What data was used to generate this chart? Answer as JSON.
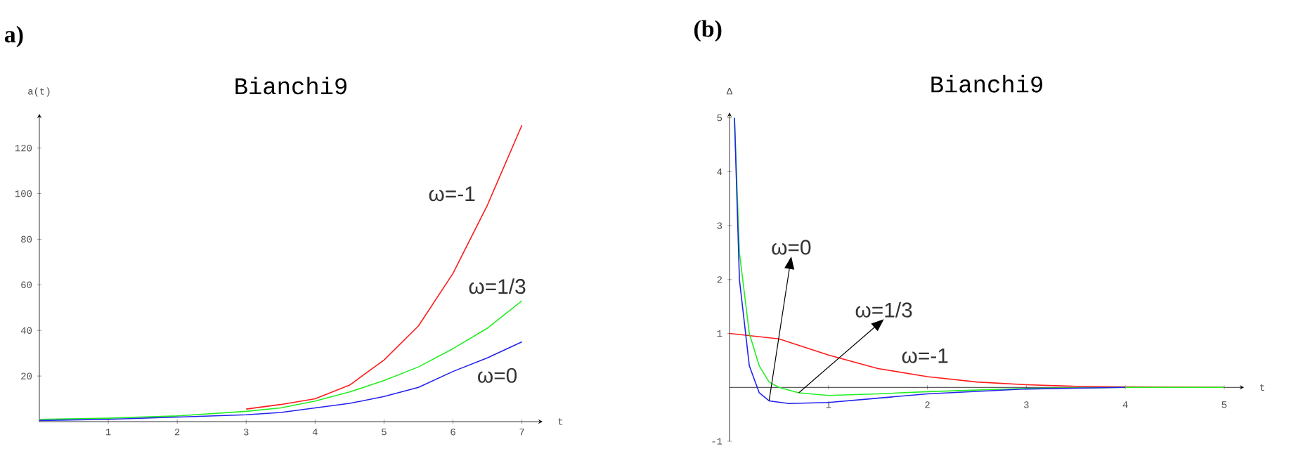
{
  "chart_data": [
    {
      "type": "line",
      "title": "Bianchi9",
      "xlabel": "t",
      "ylabel": "a(t)",
      "xlim": [
        0,
        7.3
      ],
      "ylim": [
        0,
        135
      ],
      "xticks": [
        1,
        2,
        3,
        4,
        5,
        6,
        7
      ],
      "yticks": [
        20,
        40,
        60,
        80,
        100,
        120
      ],
      "grid": false,
      "marker": "none",
      "series": [
        {
          "color": "#ff1a1a",
          "x": [
            3,
            3.5,
            4,
            4.5,
            5,
            5.5,
            6,
            6.5,
            7
          ],
          "values": [
            5.5,
            7.5,
            10,
            16,
            27,
            42,
            65,
            95,
            130
          ]
        },
        {
          "color": "#22ee22",
          "x": [
            0,
            1,
            2,
            3,
            3.5,
            4,
            4.5,
            5,
            5.5,
            6,
            6.5,
            7
          ],
          "values": [
            1,
            1.5,
            2.5,
            4.5,
            6,
            9,
            13,
            18,
            24,
            32,
            41,
            53
          ]
        },
        {
          "color": "#2222ee",
          "x": [
            0,
            1,
            2,
            3,
            3.5,
            4,
            4.5,
            5,
            5.5,
            6,
            6.5,
            7
          ],
          "values": [
            0.5,
            1,
            2,
            3,
            4,
            6,
            8,
            11,
            15,
            22,
            28,
            35
          ]
        }
      ],
      "annotations": [
        "a)",
        "ω=-1",
        "ω=1/3",
        "ω=0"
      ]
    },
    {
      "type": "line",
      "title": "Bianchi9",
      "xlabel": "t",
      "ylabel": "Δ",
      "xlim": [
        0,
        5.2
      ],
      "ylim": [
        -1,
        5.1
      ],
      "xticks": [
        1,
        2,
        3,
        4,
        5
      ],
      "yticks": [
        -1,
        1,
        2,
        3,
        4,
        5
      ],
      "grid": false,
      "marker": "none",
      "series": [
        {
          "color": "#ff1a1a",
          "x": [
            0,
            0.5,
            1,
            1.5,
            2,
            2.5,
            3,
            3.5,
            4,
            5
          ],
          "values": [
            1,
            0.9,
            0.6,
            0.35,
            0.2,
            0.1,
            0.05,
            0.02,
            0.01,
            0
          ]
        },
        {
          "color": "#22ee22",
          "x": [
            0.05,
            0.1,
            0.2,
            0.3,
            0.4,
            0.5,
            0.7,
            1,
            1.5,
            2,
            3,
            4,
            5
          ],
          "values": [
            5,
            2.5,
            1,
            0.4,
            0.1,
            0,
            -0.1,
            -0.15,
            -0.12,
            -0.08,
            -0.02,
            0,
            0
          ]
        },
        {
          "color": "#2222ee",
          "x": [
            0.05,
            0.1,
            0.2,
            0.3,
            0.4,
            0.6,
            1,
            1.5,
            2,
            3,
            4
          ],
          "values": [
            5,
            2,
            0.4,
            -0.1,
            -0.25,
            -0.3,
            -0.28,
            -0.2,
            -0.12,
            -0.03,
            0
          ]
        }
      ],
      "annotations": [
        "(b)",
        {
          "text": "ω=0",
          "x": 0.4,
          "y": -0.25
        },
        {
          "text": "ω=1/3",
          "x": 0.7,
          "y": -0.1
        },
        "ω=-1"
      ]
    }
  ]
}
